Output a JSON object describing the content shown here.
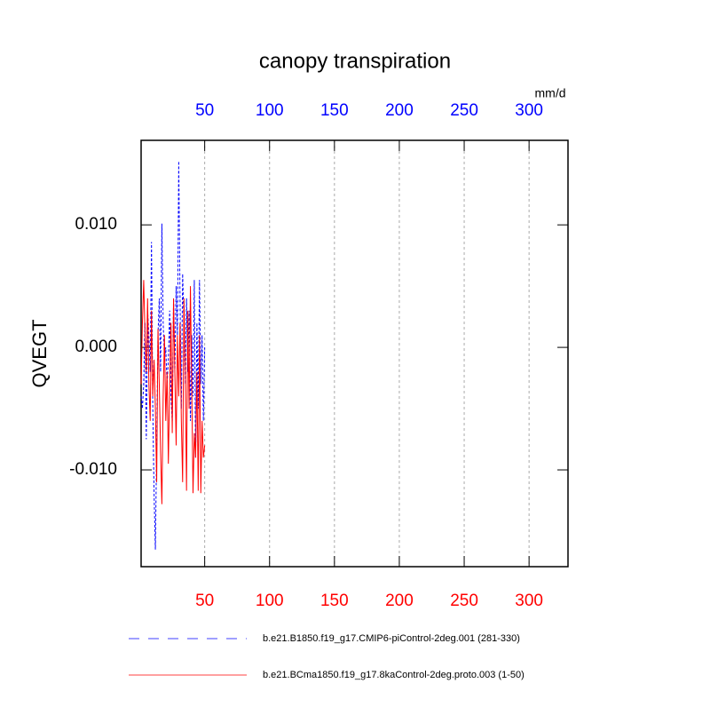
{
  "chart_data": {
    "type": "line",
    "title": "canopy transpiration",
    "ylabel": "QVEGT",
    "x_units": "mm/d",
    "x": [
      1,
      2,
      3,
      4,
      5,
      6,
      7,
      8,
      9,
      10,
      11,
      12,
      13,
      14,
      15,
      16,
      17,
      18,
      19,
      20,
      21,
      22,
      23,
      24,
      25,
      26,
      27,
      28,
      29,
      30,
      31,
      32,
      33,
      34,
      35,
      36,
      37,
      38,
      39,
      40,
      41,
      42,
      43,
      44,
      45,
      46,
      47,
      48,
      49,
      50
    ],
    "series": [
      {
        "name": "b.e21.B1850.f19_g17.CMIP6-piControl-2deg.001 (281-330)",
        "color": "#0000ff",
        "dash": "dashed",
        "values": [
          -0.004,
          -0.005,
          -0.003,
          0.002,
          -0.0075,
          0.003,
          0.001,
          -0.002,
          0.0086,
          -0.005,
          -0.012,
          -0.0165,
          -0.008,
          0.001,
          0.004,
          -0.002,
          0.0101,
          0.002,
          -0.001,
          0.0,
          -0.003,
          -0.001,
          0.003,
          -0.004,
          -0.006,
          0.004,
          -0.002,
          0.005,
          0.001,
          0.0152,
          0.004,
          -0.005,
          0.006,
          0.002,
          -0.003,
          0.004,
          -0.002,
          0.003,
          -0.006,
          0.001,
          -0.004,
          0.0055,
          -0.009,
          0.002,
          -0.005,
          0.0055,
          -0.003,
          0.001,
          -0.006,
          0.0
        ]
      },
      {
        "name": "b.e21.BCma1850.f19_g17.8kaControl-2deg.proto.003 (1-50)",
        "color": "#ff0000",
        "dash": "solid",
        "values": [
          -0.003,
          0.002,
          0.0055,
          0.001,
          -0.002,
          0.004,
          -0.003,
          -0.006,
          0.003,
          -0.004,
          -0.001,
          -0.005,
          -0.011,
          0.0015,
          -0.003,
          -0.0085,
          -0.0128,
          -0.004,
          0.001,
          -0.006,
          -0.002,
          -0.0095,
          -0.003,
          0.002,
          -0.007,
          0.004,
          -0.002,
          -0.008,
          0.001,
          -0.004,
          0.002,
          -0.006,
          -0.011,
          0.004,
          -0.002,
          -0.0117,
          0.003,
          -0.005,
          0.005,
          -0.003,
          -0.0119,
          -0.007,
          -0.009,
          -0.002,
          -0.0117,
          0.001,
          -0.0119,
          -0.006,
          -0.009,
          -0.008
        ]
      }
    ],
    "xlim": [
      1,
      330
    ],
    "xticks": [
      50,
      100,
      150,
      200,
      250,
      300
    ],
    "xtick_color_top": "#0000ff",
    "xtick_color_bottom": "#ff0000",
    "ylim": [
      -0.0179,
      0.0169
    ],
    "yticks": [
      {
        "value": -0.01,
        "label": "-0.010"
      },
      {
        "value": 0,
        "label": "0.000"
      },
      {
        "value": 0.01,
        "label": "0.010"
      }
    ],
    "grid": "x"
  }
}
